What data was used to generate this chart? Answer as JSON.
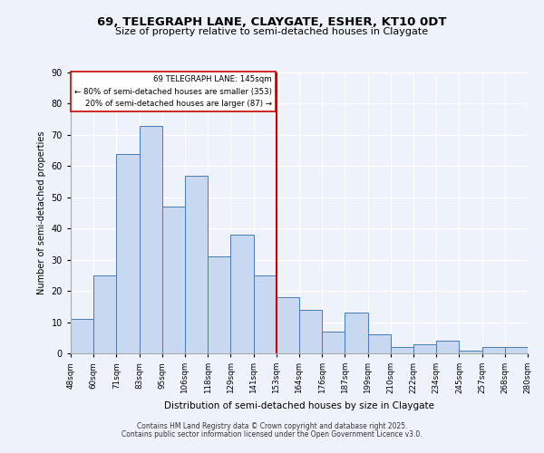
{
  "title": "69, TELEGRAPH LANE, CLAYGATE, ESHER, KT10 0DT",
  "subtitle": "Size of property relative to semi-detached houses in Claygate",
  "xlabel": "Distribution of semi-detached houses by size in Claygate",
  "ylabel": "Number of semi-detached properties",
  "bin_labels": [
    "48sqm",
    "60sqm",
    "71sqm",
    "83sqm",
    "95sqm",
    "106sqm",
    "118sqm",
    "129sqm",
    "141sqm",
    "153sqm",
    "164sqm",
    "176sqm",
    "187sqm",
    "199sqm",
    "210sqm",
    "222sqm",
    "234sqm",
    "245sqm",
    "257sqm",
    "268sqm",
    "280sqm"
  ],
  "bar_heights": [
    11,
    25,
    64,
    73,
    47,
    57,
    31,
    38,
    25,
    18,
    14,
    7,
    13,
    6,
    2,
    3,
    4,
    1,
    2,
    2
  ],
  "bar_color": "#c8d8f0",
  "bar_edge_color": "#4a7ab5",
  "reference_line_x": 8.5,
  "reference_line_color": "#cc0000",
  "annotation_title": "69 TELEGRAPH LANE: 145sqm",
  "annotation_line1": "← 80% of semi-detached houses are smaller (353)",
  "annotation_line2": "20% of semi-detached houses are larger (87) →",
  "annotation_box_color": "#cc0000",
  "ylim": [
    0,
    90
  ],
  "yticks": [
    0,
    10,
    20,
    30,
    40,
    50,
    60,
    70,
    80,
    90
  ],
  "background_color": "#eef2fb",
  "footer_line1": "Contains HM Land Registry data © Crown copyright and database right 2025.",
  "footer_line2": "Contains public sector information licensed under the Open Government Licence v3.0."
}
